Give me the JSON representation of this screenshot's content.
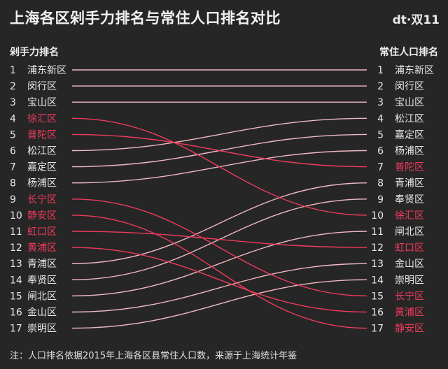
{
  "title": "上海各区剁手力排名与常住人口排名对比",
  "brand": "dt·双11",
  "left_header": "剁手力排名",
  "right_header": "常住人口排名",
  "note": "注：人口排名依据2015年上海各区县常住人口数，来源于上海统计年鉴",
  "colors": {
    "background": "#262626",
    "normal_line": "#f0b9c2",
    "highlight_line": "#ee3b5b",
    "normal_text": "#e8e8e8",
    "highlight_text": "#ee3b5b"
  },
  "chart_data": {
    "type": "slope",
    "title": "上海各区剁手力排名与常住人口排名对比",
    "left_axis_label": "剁手力排名",
    "right_axis_label": "常住人口排名",
    "ranks": [
      1,
      2,
      3,
      4,
      5,
      6,
      7,
      8,
      9,
      10,
      11,
      12,
      13,
      14,
      15,
      16,
      17
    ],
    "left_order": [
      "浦东新区",
      "闵行区",
      "宝山区",
      "徐汇区",
      "普陀区",
      "松江区",
      "嘉定区",
      "杨浦区",
      "长宁区",
      "静安区",
      "虹口区",
      "黄浦区",
      "青浦区",
      "奉贤区",
      "闸北区",
      "金山区",
      "崇明区"
    ],
    "right_order": [
      "浦东新区",
      "闵行区",
      "宝山区",
      "松江区",
      "嘉定区",
      "杨浦区",
      "普陀区",
      "青浦区",
      "奉贤区",
      "徐汇区",
      "闸北区",
      "虹口区",
      "金山区",
      "崇明区",
      "长宁区",
      "黄浦区",
      "静安区"
    ],
    "highlighted": [
      "徐汇区",
      "普陀区",
      "长宁区",
      "静安区",
      "虹口区",
      "黄浦区"
    ],
    "note": "注：人口排名依据2015年上海各区县常住人口数，来源于上海统计年鉴"
  }
}
